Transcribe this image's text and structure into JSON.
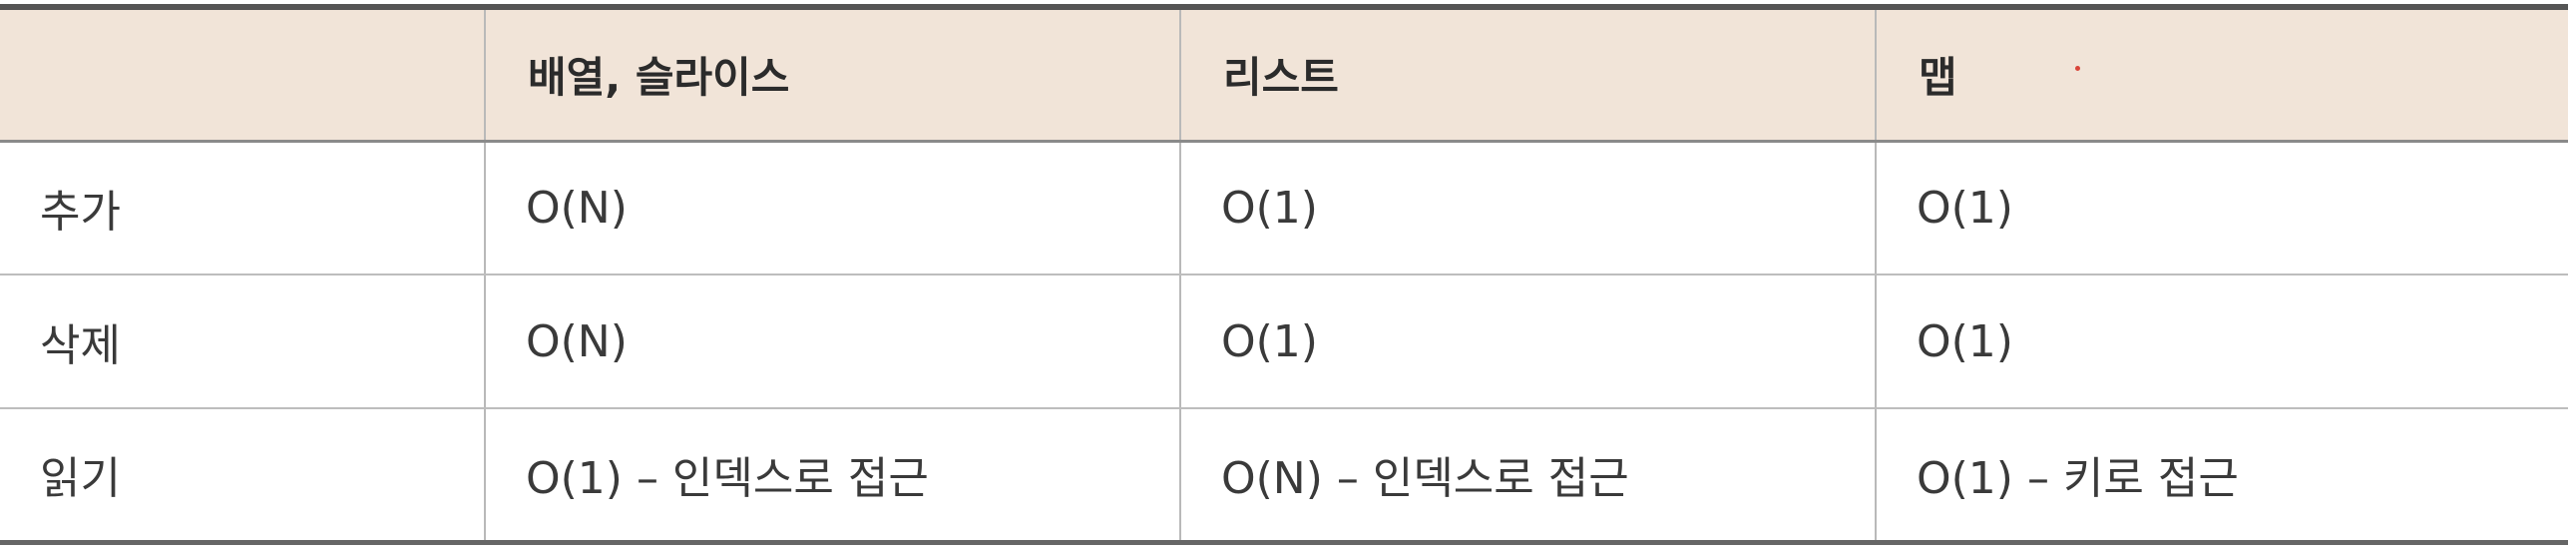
{
  "table": {
    "headers": [
      "",
      "배열, 슬라이스",
      "리스트",
      "맵"
    ],
    "rows": [
      {
        "label": "추가",
        "cells": [
          "O(N)",
          "O(1)",
          "O(1)"
        ]
      },
      {
        "label": "삭제",
        "cells": [
          "O(N)",
          "O(1)",
          "O(1)"
        ]
      },
      {
        "label": "읽기",
        "cells": [
          "O(1) – 인덱스로 접근",
          "O(N) – 인덱스로 접근",
          "O(1) – 키로 접근"
        ]
      }
    ]
  },
  "colors": {
    "header_background": "#f1e4d8",
    "accent_dot": "#d9453a"
  }
}
